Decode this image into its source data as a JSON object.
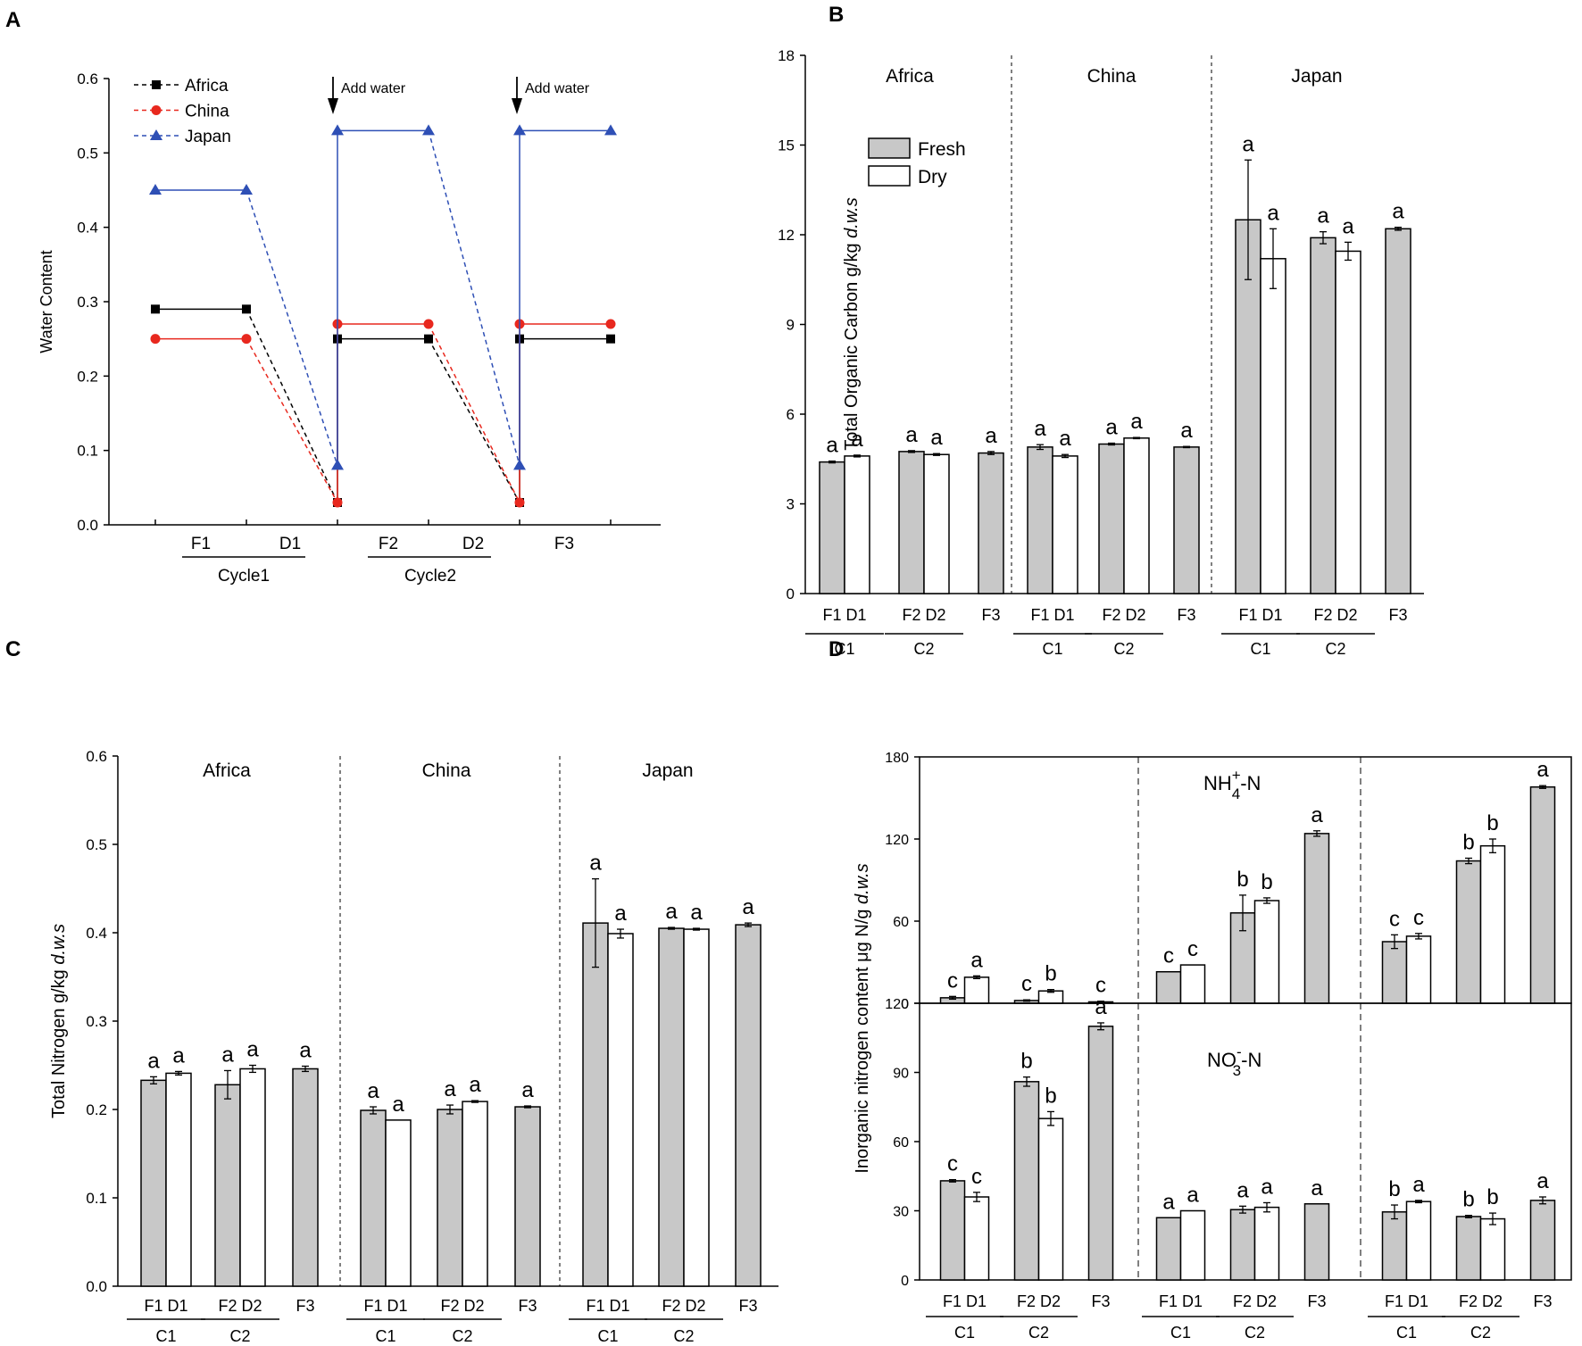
{
  "chart_data": [
    {
      "panel": "A",
      "type": "line",
      "ylabel": "Water Content",
      "ylim": [
        0,
        0.6
      ],
      "yticks": [
        "0.0",
        "0.1",
        "0.2",
        "0.3",
        "0.4",
        "0.5",
        "0.6"
      ],
      "xlabels": [
        "F1",
        "D1",
        "F2",
        "D2",
        "F3"
      ],
      "cycles": [
        "Cycle1",
        "Cycle2"
      ],
      "annotation": "Add water",
      "series": [
        {
          "name": "Africa",
          "color": "#000000",
          "marker": "square",
          "values": [
            0.29,
            0.29,
            0.03,
            0.25,
            0.25,
            0.03,
            0.25,
            0.25
          ]
        },
        {
          "name": "China",
          "color": "#e8281e",
          "marker": "circle",
          "values": [
            0.25,
            0.25,
            0.03,
            0.27,
            0.27,
            0.03,
            0.27,
            0.27
          ]
        },
        {
          "name": "Japan",
          "color": "#2e4fb5",
          "marker": "triangle",
          "values": [
            0.45,
            0.45,
            0.08,
            0.53,
            0.53,
            0.08,
            0.53,
            0.53
          ]
        }
      ]
    },
    {
      "panel": "B",
      "type": "bar",
      "ylabel": "Total Organic Carbon g/kg ",
      "ylabel_italic": "d.w.s",
      "ylim": [
        0,
        18
      ],
      "yticks": [
        "0",
        "3",
        "6",
        "9",
        "12",
        "15",
        "18"
      ],
      "legend": [
        "Fresh",
        "Dry"
      ],
      "groups": [
        {
          "name": "Africa",
          "values": [
            4.4,
            4.6,
            4.75,
            4.65,
            4.7
          ],
          "errors": [
            0.03,
            0.03,
            0.03,
            0.03,
            0.05
          ],
          "letters": [
            "a",
            "a",
            "a",
            "a",
            "a"
          ]
        },
        {
          "name": "China",
          "values": [
            4.9,
            4.6,
            5.0,
            5.2,
            4.9
          ],
          "errors": [
            0.08,
            0.05,
            0.03,
            0.02,
            0.02
          ],
          "letters": [
            "a",
            "a",
            "a",
            "a",
            "a"
          ]
        },
        {
          "name": "Japan",
          "values": [
            12.5,
            11.2,
            11.9,
            11.45,
            12.2
          ],
          "errors": [
            2.0,
            1.0,
            0.2,
            0.3,
            0.05
          ],
          "letters": [
            "a",
            "a",
            "a",
            "a",
            "a"
          ]
        }
      ],
      "bar_labels": [
        "F1",
        "D1",
        "F2",
        "D2",
        "F3"
      ],
      "cycle_labels": [
        "C1",
        "C2"
      ]
    },
    {
      "panel": "C",
      "type": "bar",
      "ylabel": "Total Nitrogen g/kg ",
      "ylabel_italic": "d.w.s",
      "ylim": [
        0,
        0.6
      ],
      "yticks": [
        "0.0",
        "0.1",
        "0.2",
        "0.3",
        "0.4",
        "0.5",
        "0.6"
      ],
      "groups": [
        {
          "name": "Africa",
          "values": [
            0.233,
            0.241,
            0.228,
            0.246,
            0.246
          ],
          "errors": [
            0.004,
            0.002,
            0.016,
            0.004,
            0.003
          ],
          "letters": [
            "a",
            "a",
            "a",
            "a",
            "a"
          ]
        },
        {
          "name": "China",
          "values": [
            0.199,
            0.188,
            0.2,
            0.209,
            0.203
          ],
          "errors": [
            0.004,
            0.0,
            0.005,
            0.001,
            0.001
          ],
          "letters": [
            "a",
            "a",
            "a",
            "a",
            "a"
          ]
        },
        {
          "name": "Japan",
          "values": [
            0.411,
            0.399,
            0.405,
            0.404,
            0.409
          ],
          "errors": [
            0.05,
            0.005,
            0.001,
            0.001,
            0.002
          ],
          "letters": [
            "a",
            "a",
            "a",
            "a",
            "a"
          ]
        }
      ],
      "bar_labels": [
        "F1",
        "D1",
        "F2",
        "D2",
        "F3"
      ],
      "cycle_labels": [
        "C1",
        "C2"
      ]
    },
    {
      "panel": "D",
      "type": "bar",
      "ylabel": "Inorganic nitrogen content μg N/g ",
      "ylabel_italic": "d.w.s",
      "subpanels": [
        {
          "label_main": "NH",
          "label_sup": "+",
          "label_sub": "4",
          "label_rest": "-N",
          "ylim": [
            0,
            180
          ],
          "yticks": [
            "0",
            "60",
            "120",
            "180"
          ],
          "groups": [
            {
              "values": [
                4,
                19,
                2,
                9,
                1
              ],
              "errors": [
                1,
                1,
                0.5,
                1,
                0.5
              ],
              "letters": [
                "c",
                "a",
                "c",
                "b",
                "c"
              ]
            },
            {
              "values": [
                23,
                28,
                66,
                75,
                124
              ],
              "errors": [
                0,
                0,
                13,
                2,
                2
              ],
              "letters": [
                "c",
                "c",
                "b",
                "b",
                "a"
              ]
            },
            {
              "values": [
                45,
                49,
                104,
                115,
                158
              ],
              "errors": [
                5,
                2,
                2,
                5,
                1
              ],
              "letters": [
                "c",
                "c",
                "b",
                "b",
                "a"
              ]
            }
          ]
        },
        {
          "label_main": "NO",
          "label_sup": "-",
          "label_sub": "3",
          "label_rest": "-N",
          "ylim": [
            0,
            120
          ],
          "yticks": [
            "0",
            "30",
            "60",
            "90",
            "120"
          ],
          "groups": [
            {
              "values": [
                43,
                36,
                86,
                70,
                110
              ],
              "errors": [
                0.5,
                2,
                2,
                3,
                1.5
              ],
              "letters": [
                "c",
                "c",
                "b",
                "b",
                "a"
              ]
            },
            {
              "values": [
                27,
                30,
                30.5,
                31.5,
                33
              ],
              "errors": [
                0,
                0,
                1.5,
                2,
                0
              ],
              "letters": [
                "a",
                "a",
                "a",
                "a",
                "a"
              ]
            },
            {
              "values": [
                29.5,
                34,
                27.5,
                26.5,
                34.5
              ],
              "errors": [
                3,
                0.5,
                0.5,
                2.5,
                1.5
              ],
              "letters": [
                "b",
                "a",
                "b",
                "b",
                "a"
              ]
            }
          ]
        }
      ],
      "bar_labels": [
        "F1",
        "D1",
        "F2",
        "D2",
        "F3"
      ],
      "cycle_labels": [
        "C1",
        "C2"
      ]
    }
  ],
  "panel_letters": [
    "A",
    "B",
    "C",
    "D"
  ]
}
